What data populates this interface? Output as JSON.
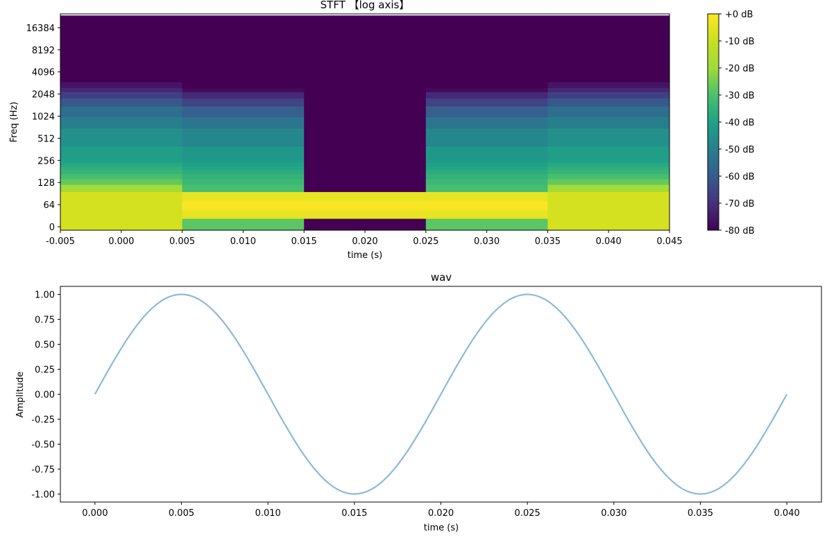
{
  "chart_data": [
    {
      "type": "heatmap",
      "title": "STFT 【log axis】",
      "xlabel": "time (s)",
      "ylabel": "Freq (Hz)",
      "xlim": [
        -0.005,
        0.045
      ],
      "x_ticks": [
        "-0.005",
        "0.000",
        "0.005",
        "0.010",
        "0.015",
        "0.020",
        "0.025",
        "0.030",
        "0.035",
        "0.040",
        "0.045"
      ],
      "y_ticks": [
        "0",
        "64",
        "128",
        "256",
        "512",
        "1024",
        "2048",
        "4096",
        "8192",
        "16384"
      ],
      "y_scale": "symlog (base 2)",
      "colormap": "viridis",
      "colorbar": {
        "min_db": -80,
        "max_db": 0,
        "tick_labels": [
          "+0 dB",
          "-10 dB",
          "-20 dB",
          "-30 dB",
          "-40 dB",
          "-50 dB",
          "-60 dB",
          "-70 dB",
          "-80 dB"
        ]
      },
      "frame_centers_s": [
        0.0,
        0.01,
        0.02,
        0.03,
        0.04
      ],
      "frame_edges_s": [
        -0.005,
        0.005,
        0.015,
        0.025,
        0.035,
        0.045
      ],
      "bin_edges_hz": [
        0,
        24,
        48,
        72,
        96,
        120,
        144,
        168,
        192,
        216,
        240,
        264,
        400,
        700,
        1000,
        1400,
        1800,
        2200,
        2500,
        3000,
        5000,
        24000
      ],
      "magnitude_db": [
        [
          -8,
          -28,
          -80,
          -28,
          -8
        ],
        [
          -8,
          -4,
          -4,
          -4,
          -8
        ],
        [
          -8,
          -1,
          -1,
          -1,
          -8
        ],
        [
          -8,
          -4,
          -4,
          -4,
          -8
        ],
        [
          -19,
          -31,
          -80,
          -31,
          -19
        ],
        [
          -27,
          -33,
          -80,
          -33,
          -27
        ],
        [
          -31,
          -35,
          -80,
          -35,
          -31
        ],
        [
          -34,
          -37,
          -80,
          -37,
          -34
        ],
        [
          -36,
          -39,
          -80,
          -39,
          -36
        ],
        [
          -38,
          -40,
          -80,
          -40,
          -38
        ],
        [
          -40,
          -42,
          -80,
          -42,
          -40
        ],
        [
          -41,
          -43,
          -80,
          -43,
          -41
        ],
        [
          -45,
          -48,
          -80,
          -48,
          -45
        ],
        [
          -50,
          -53,
          -80,
          -53,
          -50
        ],
        [
          -55,
          -59,
          -80,
          -59,
          -55
        ],
        [
          -61,
          -66,
          -80,
          -66,
          -61
        ],
        [
          -67,
          -72,
          -80,
          -72,
          -67
        ],
        [
          -72,
          -78,
          -80,
          -78,
          -72
        ],
        [
          -76,
          -80,
          -80,
          -80,
          -76
        ],
        [
          -80,
          -80,
          -80,
          -80,
          -80
        ],
        [
          -80,
          -80,
          -80,
          -80,
          -80
        ]
      ]
    },
    {
      "type": "line",
      "title": "wav",
      "xlabel": "time (s)",
      "ylabel": "Amplitude",
      "xlim": [
        -0.002,
        0.042
      ],
      "ylim": [
        -1.08,
        1.08
      ],
      "x_ticks": [
        "0.000",
        "0.005",
        "0.010",
        "0.015",
        "0.020",
        "0.025",
        "0.030",
        "0.035",
        "0.040"
      ],
      "y_ticks": [
        "1.00",
        "0.75",
        "0.50",
        "0.25",
        "0.00",
        "-0.25",
        "-0.50",
        "-0.75",
        "-1.00"
      ],
      "line_color": "#89b9d9",
      "series": [
        {
          "x": [
            0.0,
            0.001,
            0.002,
            0.003,
            0.004,
            0.005,
            0.006,
            0.007,
            0.008,
            0.009,
            0.01,
            0.011,
            0.012,
            0.013,
            0.014,
            0.015,
            0.016,
            0.017,
            0.018,
            0.019,
            0.02,
            0.021,
            0.022,
            0.023,
            0.024,
            0.025,
            0.026,
            0.027,
            0.028,
            0.029,
            0.03,
            0.031,
            0.032,
            0.033,
            0.034,
            0.035,
            0.036,
            0.037,
            0.038,
            0.039,
            0.04
          ],
          "y": [
            0.0,
            0.309,
            0.588,
            0.809,
            0.951,
            1.0,
            0.951,
            0.809,
            0.588,
            0.309,
            0.0,
            -0.309,
            -0.588,
            -0.809,
            -0.951,
            -1.0,
            -0.951,
            -0.809,
            -0.588,
            -0.309,
            0.0,
            0.309,
            0.588,
            0.809,
            0.951,
            1.0,
            0.951,
            0.809,
            0.588,
            0.309,
            0.0,
            -0.309,
            -0.588,
            -0.809,
            -0.951,
            -1.0,
            -0.951,
            -0.809,
            -0.588,
            -0.309,
            0.0
          ]
        }
      ]
    }
  ]
}
